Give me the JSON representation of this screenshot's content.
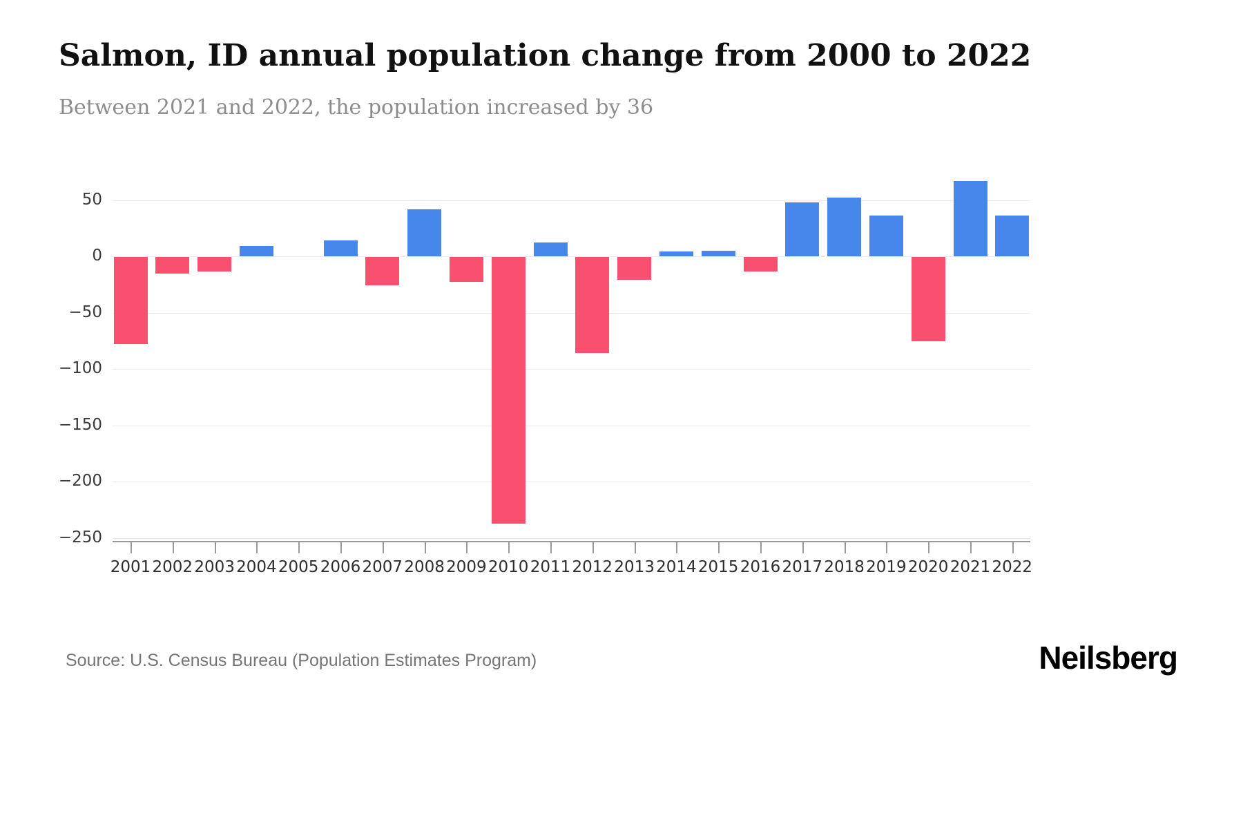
{
  "header": {
    "title": "Salmon, ID annual population change from 2000 to 2022",
    "subtitle": "Between 2021 and 2022, the population increased by 36"
  },
  "footer": {
    "source": "Source: U.S. Census Bureau (Population Estimates Program)",
    "brand": "Neilsberg"
  },
  "chart_data": {
    "type": "bar",
    "title": "Salmon, ID annual population change from 2000 to 2022",
    "subtitle": "Between 2021 and 2022, the population increased by 36",
    "categories": [
      "2001",
      "2002",
      "2003",
      "2004",
      "2005",
      "2006",
      "2007",
      "2008",
      "2009",
      "2010",
      "2011",
      "2012",
      "2013",
      "2014",
      "2015",
      "2016",
      "2017",
      "2018",
      "2019",
      "2020",
      "2021",
      "2022"
    ],
    "values": [
      -77,
      -15,
      -13,
      9,
      0,
      14,
      -25,
      42,
      -22,
      -237,
      12,
      -85,
      -20,
      4,
      5,
      -13,
      48,
      52,
      36,
      -75,
      67,
      36
    ],
    "xlabel": "",
    "ylabel": "",
    "ylim": [
      -250,
      80
    ],
    "yticks": [
      50,
      0,
      -50,
      -100,
      -150,
      -200,
      -250
    ],
    "grid": "horizontal-only",
    "legend_position": "none",
    "colors": {
      "positive": "#4787ec",
      "negative": "#f8506e"
    },
    "source": "Source: U.S. Census Bureau (Population Estimates Program)"
  }
}
